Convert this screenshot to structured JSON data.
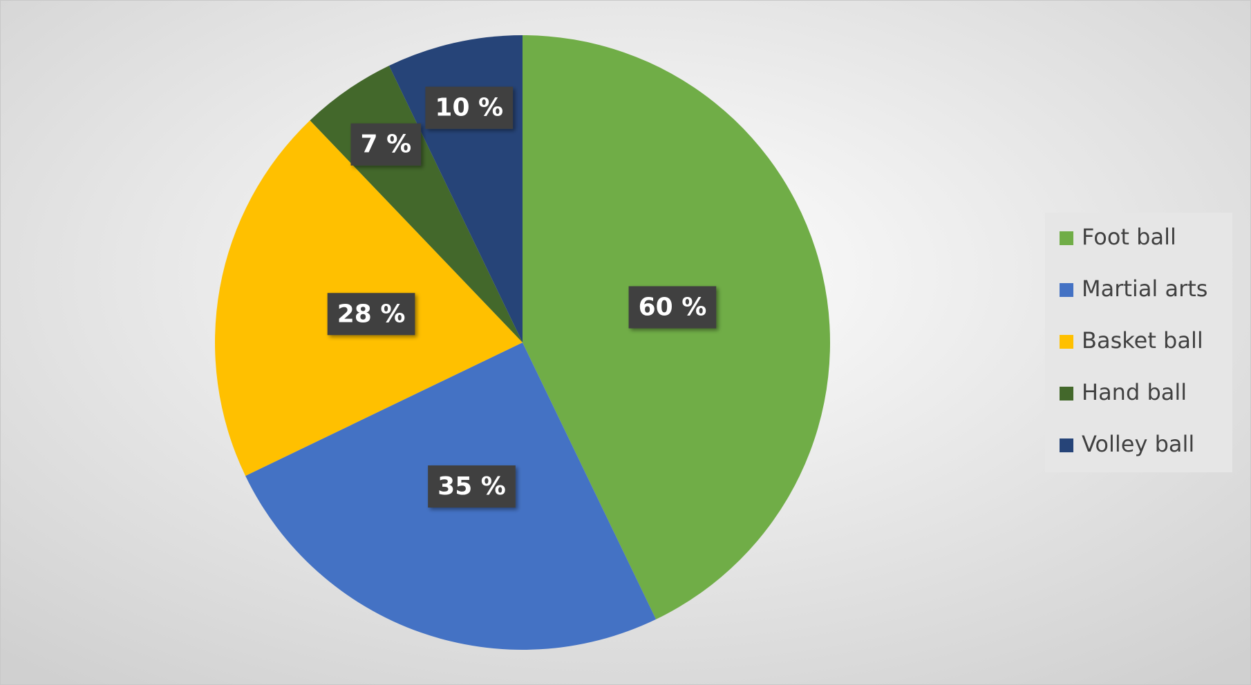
{
  "chart_data": {
    "type": "pie",
    "categories": [
      "Foot ball",
      "Martial arts",
      "Basket ball",
      "Hand ball",
      "Volley ball"
    ],
    "values": [
      60,
      35,
      28,
      7,
      10
    ],
    "value_labels": [
      "60 %",
      "35 %",
      "28 %",
      "7 %",
      "10 %"
    ],
    "colors": [
      "#70ad47",
      "#4472c4",
      "#ffc000",
      "#43682b",
      "#264478"
    ],
    "legend": "right"
  }
}
